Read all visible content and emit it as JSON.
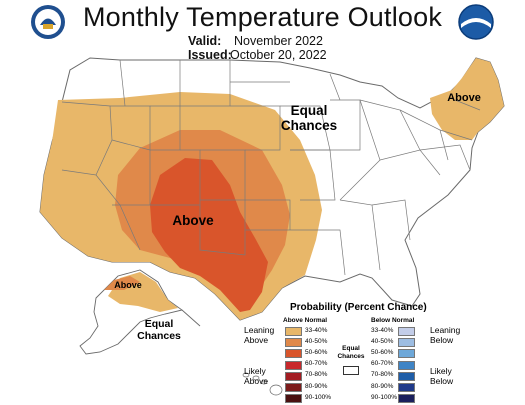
{
  "header": {
    "title": "Monthly Temperature Outlook",
    "valid_label": "Valid:",
    "valid_value": "November 2022",
    "issued_label": "Issued:",
    "issued_value": "October 20, 2022"
  },
  "logos": {
    "left": "department-of-commerce-seal",
    "right": "noaa-logo"
  },
  "map": {
    "labels": {
      "equal_chances_conus": "Equal Chances",
      "above_northeast": "Above",
      "above_southwest": "Above",
      "above_alaska": "Above",
      "equal_chances_alaska": "Equal Chances"
    },
    "colors": {
      "33-40": "#e8b769",
      "40-50": "#e0894a",
      "50-60": "#d9552b",
      "land": "#ffffff",
      "borders": "#7a7a7a"
    }
  },
  "legend": {
    "title": "Probability (Percent Chance)",
    "above_header": "Above Normal",
    "below_header": "Below Normal",
    "equal_chances": "Equal Chances",
    "leaning_above": "Leaning Above",
    "likely_above": "Likely Above",
    "leaning_below": "Leaning Below",
    "likely_below": "Likely Below",
    "above_bins": [
      {
        "label": "33-40%",
        "color": "#e8b769"
      },
      {
        "label": "40-50%",
        "color": "#e0894a"
      },
      {
        "label": "50-60%",
        "color": "#d9552b"
      },
      {
        "label": "60-70%",
        "color": "#c8282c"
      },
      {
        "label": "70-80%",
        "color": "#a31c22"
      },
      {
        "label": "80-90%",
        "color": "#7c1c1c"
      },
      {
        "label": "90-100%",
        "color": "#4a1010"
      }
    ],
    "below_bins": [
      {
        "label": "33-40%",
        "color": "#c3cde8"
      },
      {
        "label": "40-50%",
        "color": "#9dbde2"
      },
      {
        "label": "50-60%",
        "color": "#6ea8d9"
      },
      {
        "label": "60-70%",
        "color": "#3f84c5"
      },
      {
        "label": "70-80%",
        "color": "#1f5ea8"
      },
      {
        "label": "80-90%",
        "color": "#203a8a"
      },
      {
        "label": "90-100%",
        "color": "#1b1f5c"
      }
    ]
  }
}
